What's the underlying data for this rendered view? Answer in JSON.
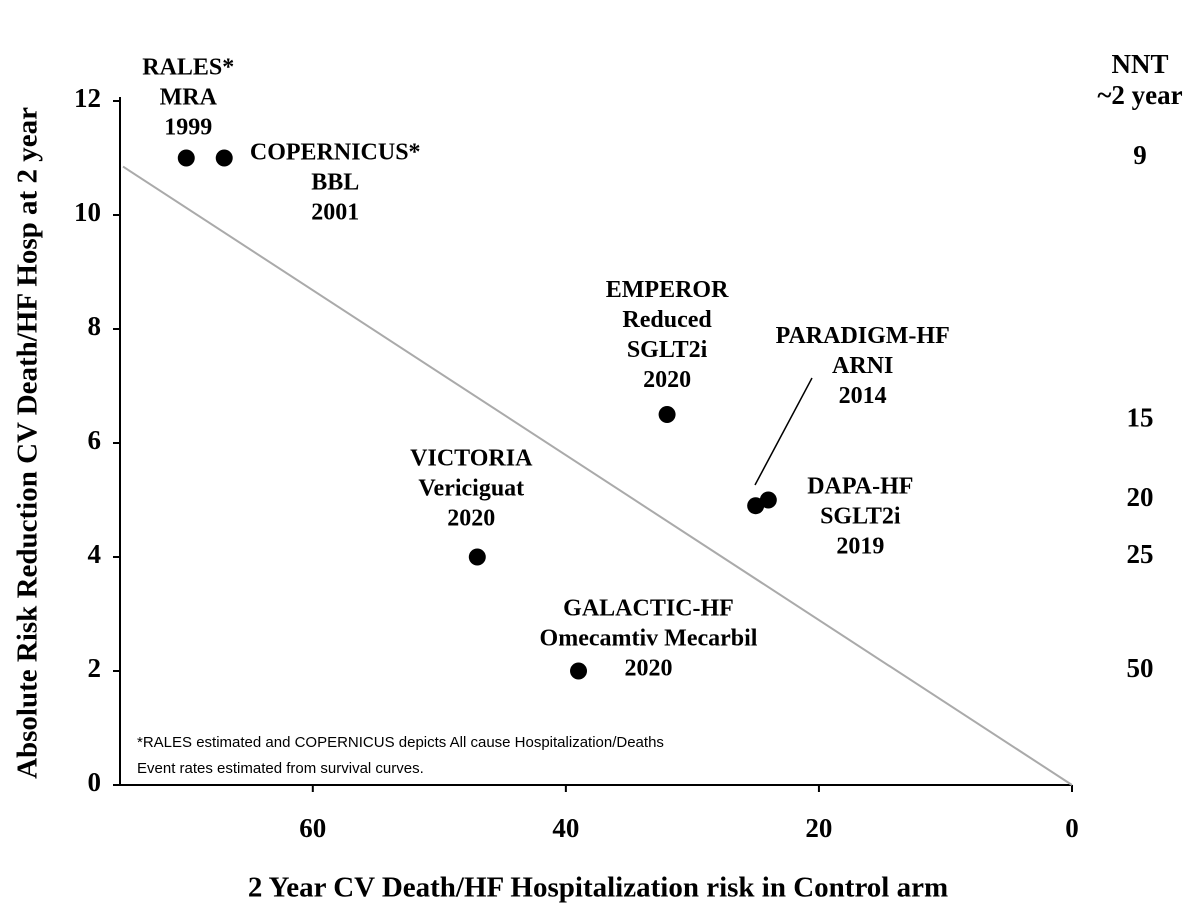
{
  "chart_data": {
    "type": "scatter",
    "xlabel": "2 Year CV Death/HF Hospitalization risk in Control arm",
    "ylabel": "Absolute Risk Reduction CV Death/HF Hosp at 2 year",
    "xlim": [
      75,
      0
    ],
    "ylim": [
      0,
      12
    ],
    "xticks": [
      60,
      40,
      20,
      0
    ],
    "yticks": [
      0,
      2,
      4,
      6,
      8,
      10,
      12
    ],
    "color": "#000000",
    "x": [
      70,
      67,
      32,
      25,
      24,
      47,
      39
    ],
    "values": [
      11,
      11,
      6.5,
      4.9,
      5,
      4,
      2
    ],
    "labels": [
      [
        "RALES*",
        "MRA",
        "1999"
      ],
      [
        "COPERNICUS*",
        "BBL",
        "2001"
      ],
      [
        "EMPEROR",
        "Reduced",
        "SGLT2i",
        "2020"
      ],
      [
        "PARADIGM-HF",
        "ARNI",
        "2014"
      ],
      [
        "DAPA-HF",
        "SGLT2i",
        "2019"
      ],
      [
        "VICTORIA",
        "Vericiguat",
        "2020"
      ],
      [
        "GALACTIC-HF",
        "Omecamtiv Mecarbil",
        "2020"
      ]
    ],
    "reference_line": {
      "x": [
        75,
        0
      ],
      "y": [
        10.85,
        0
      ],
      "color": "#aaaaaa"
    },
    "nnt": {
      "title": [
        "NNT",
        "~2 year"
      ],
      "values": [
        9,
        15,
        20,
        25,
        50
      ],
      "y": [
        11,
        6.4,
        5,
        4,
        2
      ]
    },
    "notes": [
      "*RALES estimated and COPERNICUS depicts All cause Hospitalization/Deaths",
      "Event rates estimated from survival curves."
    ]
  }
}
